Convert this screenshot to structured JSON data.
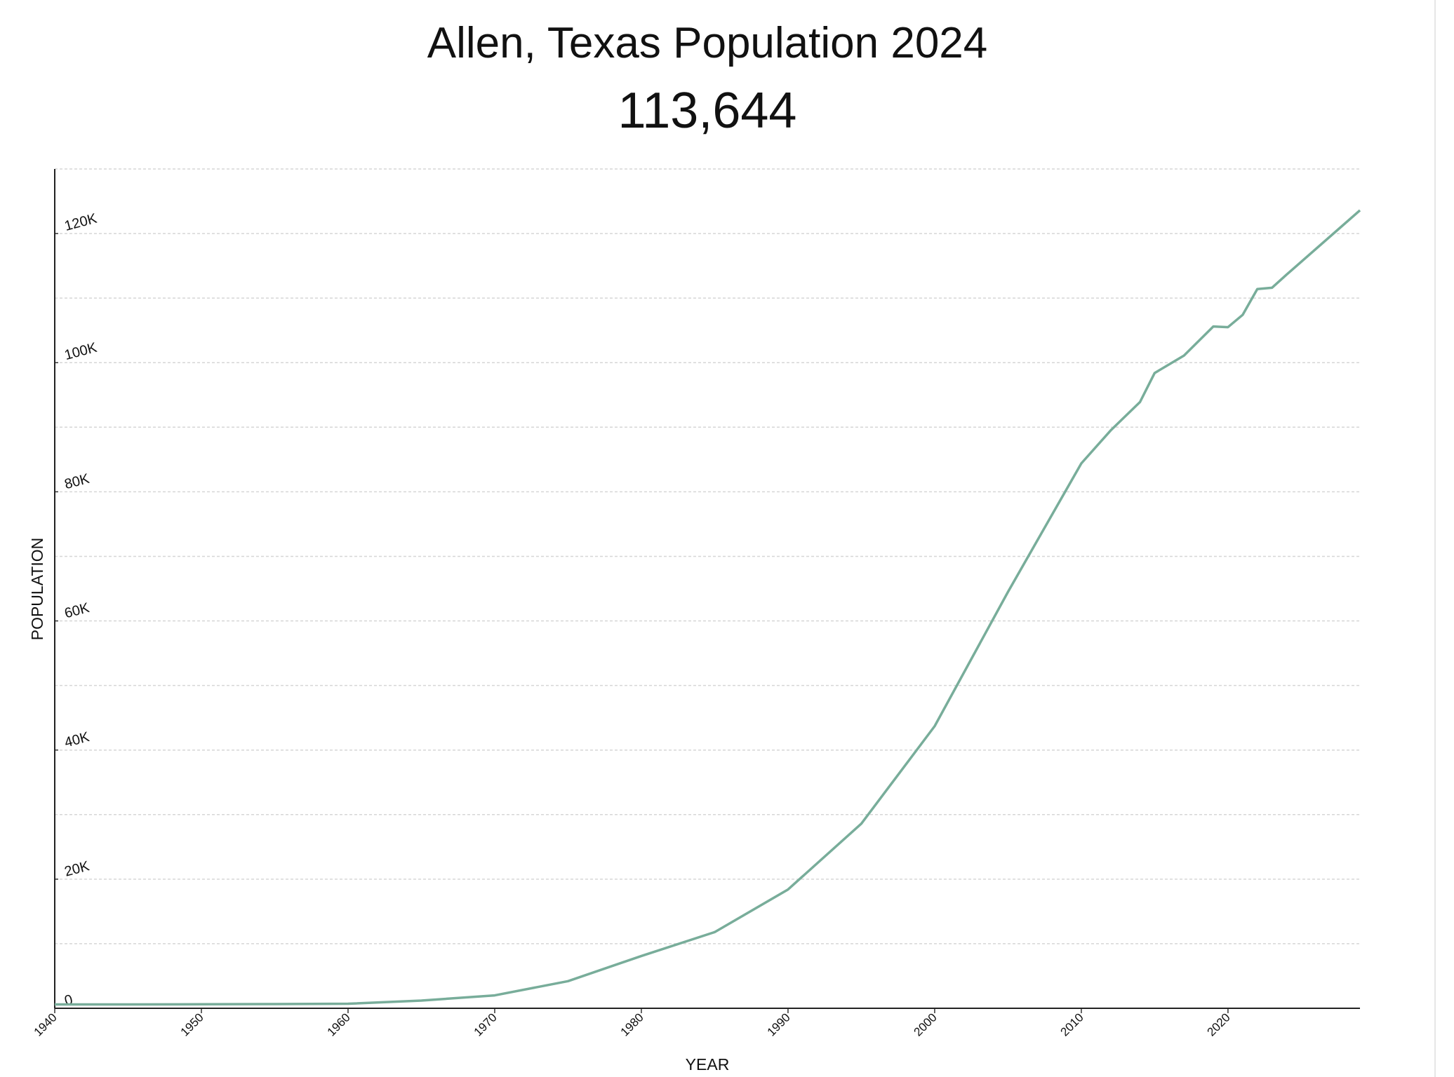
{
  "chart_data": {
    "type": "line",
    "title": "Allen, Texas Population 2024",
    "subtitle": "113,644",
    "x_label": "YEAR",
    "y_label": "POPULATION",
    "x": [
      1940,
      1945,
      1950,
      1955,
      1960,
      1965,
      1970,
      1975,
      1980,
      1985,
      1990,
      1995,
      2000,
      2005,
      2010,
      2012,
      2014,
      2015,
      2017,
      2019,
      2020,
      2021,
      2022,
      2023,
      2024,
      2029
    ],
    "series": [
      {
        "name": "Population",
        "color": "#78ad9a",
        "values": [
          600,
          600,
          620,
          650,
          700,
          1200,
          2000,
          4200,
          8100,
          11800,
          18400,
          28600,
          43700,
          64500,
          84400,
          89500,
          93900,
          98400,
          101100,
          105600,
          105500,
          107400,
          111400,
          111600,
          113644,
          123600
        ]
      }
    ],
    "xlim": [
      1940,
      2029
    ],
    "xticks": [
      1940,
      1950,
      1960,
      1970,
      1980,
      1990,
      2000,
      2010,
      2020
    ],
    "ylim": [
      0,
      130000
    ],
    "yticks": [
      0,
      {
        "value": 20000,
        "label": "20K"
      },
      {
        "value": 40000,
        "label": "40K"
      },
      {
        "value": 60000,
        "label": "60K"
      },
      {
        "value": 80000,
        "label": "80K"
      },
      {
        "value": 100000,
        "label": "100K"
      },
      {
        "value": 120000,
        "label": "120K"
      }
    ],
    "ygrid": [
      10000,
      20000,
      30000,
      40000,
      50000,
      60000,
      70000,
      80000,
      90000,
      100000,
      110000,
      120000,
      130000
    ],
    "grid": true
  }
}
